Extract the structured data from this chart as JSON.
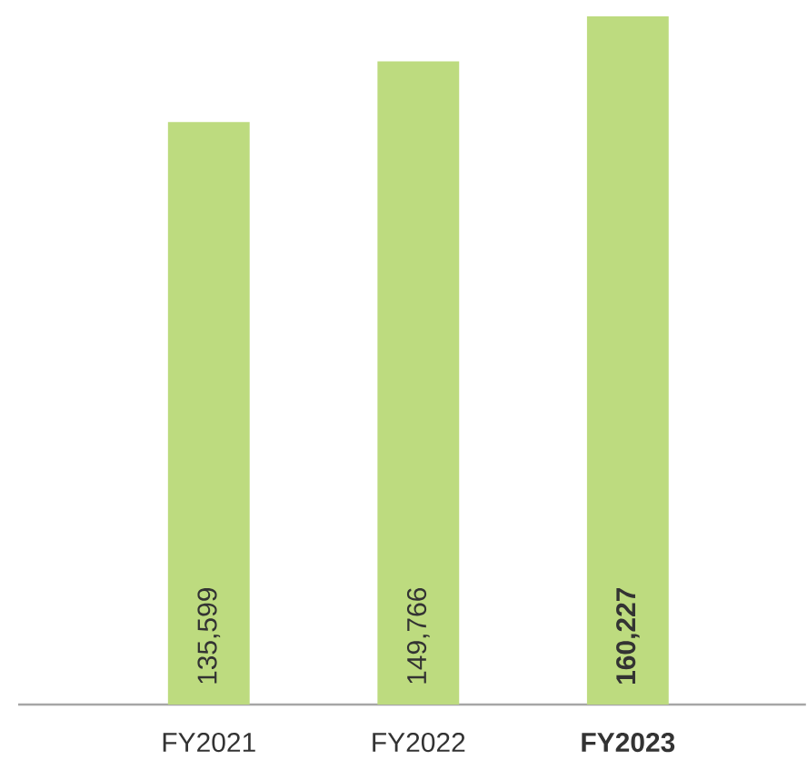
{
  "chart_data": {
    "type": "bar",
    "categories": [
      "FY2021",
      "FY2022",
      "**FY2023**"
    ],
    "values": [
      135599,
      149766,
      160227
    ],
    "value_labels": [
      "135,599",
      "149,766",
      "**160,227**"
    ],
    "color": "#bddb7f"
  }
}
